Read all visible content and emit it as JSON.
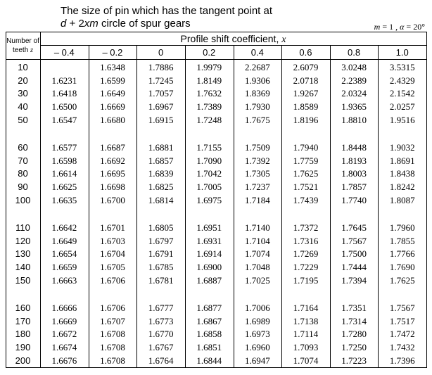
{
  "title": {
    "line1": "The size of pin which has the tangent point at",
    "line2": [
      "d",
      " + 2",
      "xm",
      " circle of spur gears"
    ]
  },
  "conditions": [
    "m",
    " = 1 , ",
    "α",
    " = 20°"
  ],
  "table": {
    "corner": [
      "Number of",
      "teeth ",
      "z"
    ],
    "group_header": [
      "Profile shift coefficient, ",
      "x"
    ],
    "columns": [
      "– 0.4",
      "– 0.2",
      "0",
      "0.2",
      "0.4",
      "0.6",
      "0.8",
      "1.0"
    ],
    "rows": [
      [
        "10",
        null,
        "1.6348",
        "1.7886",
        "1.9979",
        "2.2687",
        "2.6079",
        "3.0248",
        "3.5315"
      ],
      [
        "20",
        "1.6231",
        "1.6599",
        "1.7245",
        "1.8149",
        "1.9306",
        "2.0718",
        "2.2389",
        "2.4329"
      ],
      [
        "30",
        "1.6418",
        "1.6649",
        "1.7057",
        "1.7632",
        "1.8369",
        "1.9267",
        "2.0324",
        "2.1542"
      ],
      [
        "40",
        "1.6500",
        "1.6669",
        "1.6967",
        "1.7389",
        "1.7930",
        "1.8589",
        "1.9365",
        "2.0257"
      ],
      [
        "50",
        "1.6547",
        "1.6680",
        "1.6915",
        "1.7248",
        "1.7675",
        "1.8196",
        "1.8810",
        "1.9516"
      ],
      [
        "60",
        "1.6577",
        "1.6687",
        "1.6881",
        "1.7155",
        "1.7509",
        "1.7940",
        "1.8448",
        "1.9032"
      ],
      [
        "70",
        "1.6598",
        "1.6692",
        "1.6857",
        "1.7090",
        "1.7392",
        "1.7759",
        "1.8193",
        "1.8691"
      ],
      [
        "80",
        "1.6614",
        "1.6695",
        "1.6839",
        "1.7042",
        "1.7305",
        "1.7625",
        "1.8003",
        "1.8438"
      ],
      [
        "90",
        "1.6625",
        "1.6698",
        "1.6825",
        "1.7005",
        "1.7237",
        "1.7521",
        "1.7857",
        "1.8242"
      ],
      [
        "100",
        "1.6635",
        "1.6700",
        "1.6814",
        "1.6975",
        "1.7184",
        "1.7439",
        "1.7740",
        "1.8087"
      ],
      [
        "110",
        "1.6642",
        "1.6701",
        "1.6805",
        "1.6951",
        "1.7140",
        "1.7372",
        "1.7645",
        "1.7960"
      ],
      [
        "120",
        "1.6649",
        "1.6703",
        "1.6797",
        "1.6931",
        "1.7104",
        "1.7316",
        "1.7567",
        "1.7855"
      ],
      [
        "130",
        "1.6654",
        "1.6704",
        "1.6791",
        "1.6914",
        "1.7074",
        "1.7269",
        "1.7500",
        "1.7766"
      ],
      [
        "140",
        "1.6659",
        "1.6705",
        "1.6785",
        "1.6900",
        "1.7048",
        "1.7229",
        "1.7444",
        "1.7690"
      ],
      [
        "150",
        "1.6663",
        "1.6706",
        "1.6781",
        "1.6887",
        "1.7025",
        "1.7195",
        "1.7394",
        "1.7625"
      ],
      [
        "160",
        "1.6666",
        "1.6706",
        "1.6777",
        "1.6877",
        "1.7006",
        "1.7164",
        "1.7351",
        "1.7567"
      ],
      [
        "170",
        "1.6669",
        "1.6707",
        "1.6773",
        "1.6867",
        "1.6989",
        "1.7138",
        "1.7314",
        "1.7517"
      ],
      [
        "180",
        "1.6672",
        "1.6708",
        "1.6770",
        "1.6858",
        "1.6973",
        "1.7114",
        "1.7280",
        "1.7472"
      ],
      [
        "190",
        "1.6674",
        "1.6708",
        "1.6767",
        "1.6851",
        "1.6960",
        "1.7093",
        "1.7250",
        "1.7432"
      ],
      [
        "200",
        "1.6676",
        "1.6708",
        "1.6764",
        "1.6844",
        "1.6947",
        "1.7074",
        "1.7223",
        "1.7396"
      ]
    ]
  }
}
